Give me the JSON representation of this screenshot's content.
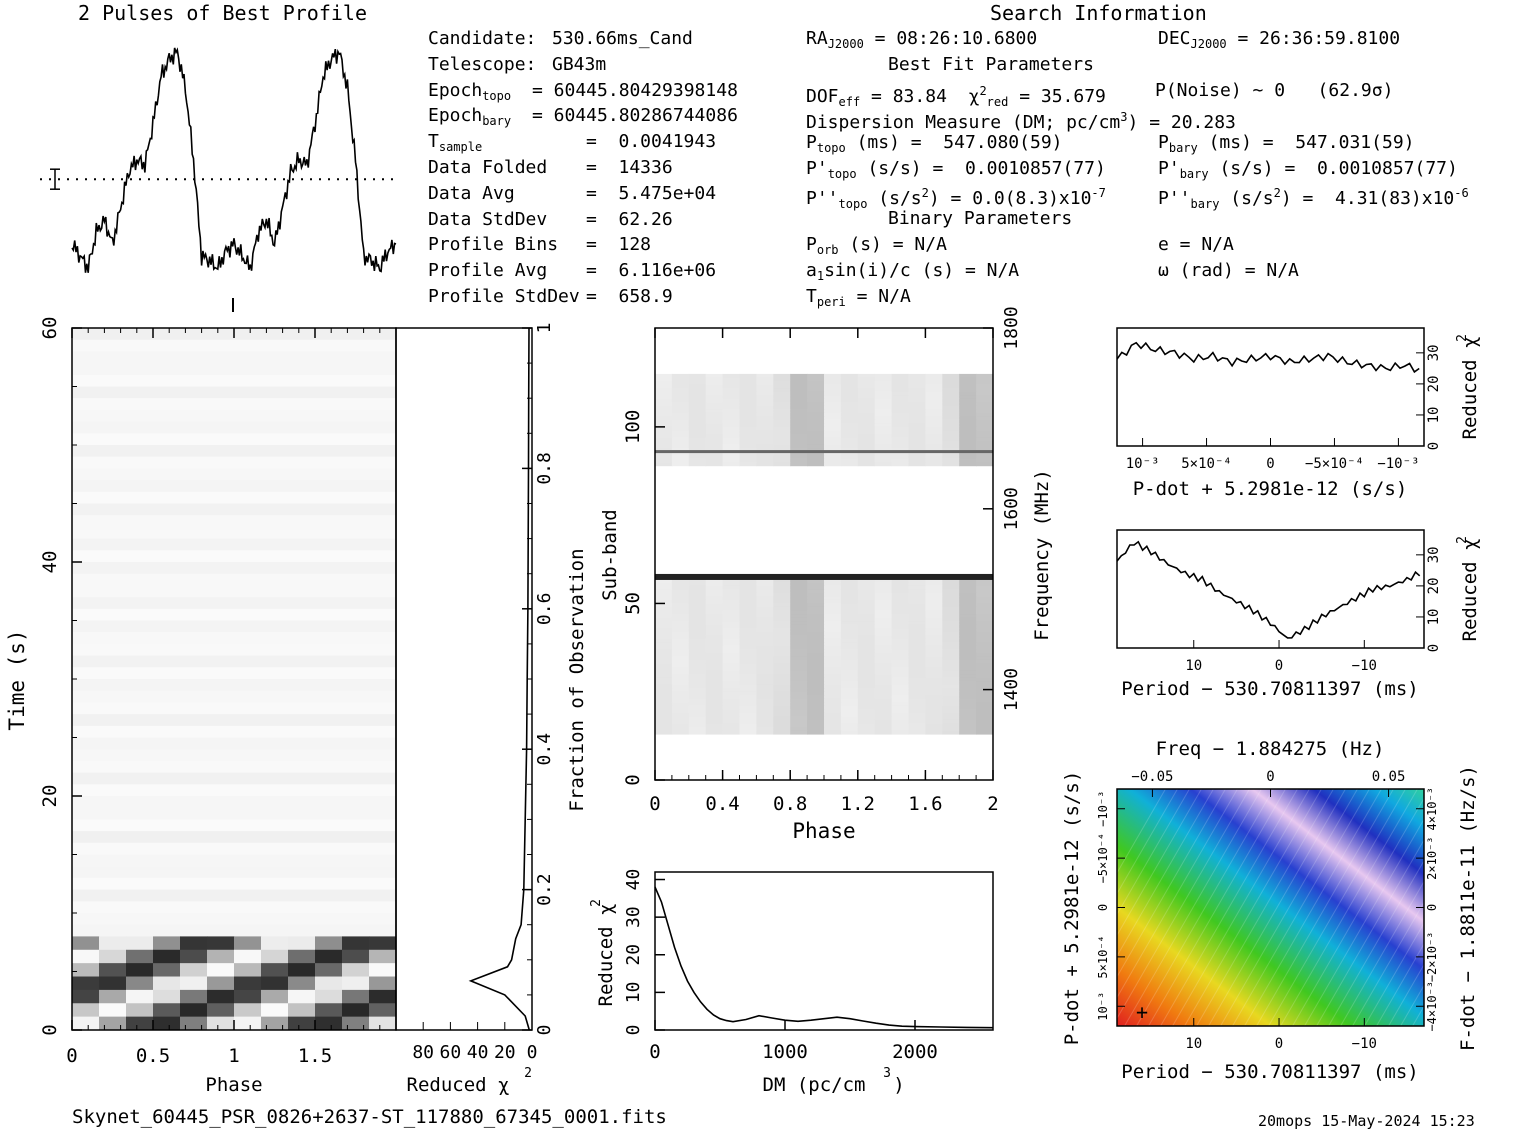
{
  "header": {
    "profile_title": "2 Pulses of Best Profile",
    "search_title": "Search Information",
    "best_fit_title": "Best Fit Parameters",
    "binary_title": "Binary Parameters"
  },
  "info_left": [
    {
      "k": "Candidate:",
      "v": "530.66ms_Cand"
    },
    {
      "k": "Telescope:",
      "v": "GB43m"
    },
    {
      "k": "Epoch",
      "sub": "topo",
      "v": "= 60445.80429398148"
    },
    {
      "k": "Epoch",
      "sub": "bary",
      "v": "= 60445.80286744086"
    },
    {
      "k": "T",
      "sub": "sample",
      "v": "=  0.0041943"
    },
    {
      "k": "Data Folded",
      "v": "=  14336"
    },
    {
      "k": "Data Avg",
      "v": "=  5.475e+04"
    },
    {
      "k": "Data StdDev",
      "v": "=  62.26"
    },
    {
      "k": "Profile Bins",
      "v": "=  128"
    },
    {
      "k": "Profile Avg",
      "v": "=  6.116e+06"
    },
    {
      "k": "Profile StdDev",
      "v": "=  658.9"
    }
  ],
  "info_mid": {
    "ra": "RA",
    "ra_sub": "J2000",
    "ra_val": "= 08:26:10.6800",
    "dof": "DOF",
    "dof_sub": "eff",
    "dof_val": "= 83.84",
    "chi": "χ",
    "chi_sup": "2",
    "chi_sub": "red",
    "chi_val": "= 35.679",
    "dm_line": "Dispersion Measure (DM; pc/cm",
    "dm_sup": "3",
    "dm_val": ") = 20.283",
    "p_topo": "P",
    "p_topo_sub": "topo",
    "p_topo_val": "(ms) =  547.080(59)",
    "pd_topo": "P'",
    "pd_topo_sub": "topo",
    "pd_topo_val": "(s/s) =  0.0010857(77)",
    "pdd_topo": "P''",
    "pdd_topo_sub": "topo",
    "pdd_topo_val": "(s/s",
    "pdd_topo_sup": "2",
    "pdd_topo_val2": ") = 0.0(8.3)x10",
    "pdd_topo_exp": "-7",
    "porb": "P",
    "porb_sub": "orb",
    "porb_val": "(s) = N/A",
    "a1": "a",
    "a1_sub": "1",
    "a1_val": "sin(i)/c (s) = N/A",
    "tperi": "T",
    "tperi_sub": "peri",
    "tperi_val": "= N/A"
  },
  "info_right": {
    "dec": "DEC",
    "dec_sub": "J2000",
    "dec_val": "= 26:36:59.8100",
    "pnoise": "P(Noise) ~ 0   (62.9σ)",
    "p_bary": "P",
    "p_bary_sub": "bary",
    "p_bary_val": "(ms) =  547.031(59)",
    "pd_bary": "P'",
    "pd_bary_sub": "bary",
    "pd_bary_val": "(s/s) =  0.0010857(77)",
    "pdd_bary": "P''",
    "pdd_bary_sub": "bary",
    "pdd_bary_val": "(s/s",
    "pdd_bary_sup": "2",
    "pdd_bary_val2": ") =  4.31(83)x10",
    "pdd_bary_exp": "-6",
    "ecc": "e = N/A",
    "omega": "ω (rad) = N/A"
  },
  "footer": {
    "filename": "Skynet_60445_PSR_0826+2637-ST_117880_67345_0001.fits",
    "stamp": "20mops 15-May-2024 15:23"
  },
  "colors": {
    "ink": "#000000",
    "grid_bg": "#ffffff"
  },
  "chart_data": [
    {
      "id": "profile",
      "type": "line",
      "title": "2 Pulses of Best Profile",
      "x": [
        0,
        0.05,
        0.1,
        0.15,
        0.2,
        0.25,
        0.3,
        0.35,
        0.4,
        0.45,
        0.5,
        0.55,
        0.6,
        0.65,
        0.7,
        0.75,
        0.8,
        0.85,
        0.9,
        0.95,
        1.0,
        1.05,
        1.1,
        1.15,
        1.2,
        1.25,
        1.3,
        1.35,
        1.4,
        1.45,
        1.5,
        1.55,
        1.6,
        1.65,
        1.7,
        1.75,
        1.8,
        1.85,
        1.9,
        1.95,
        2.0
      ],
      "y": [
        0.15,
        0.1,
        0.05,
        0.2,
        0.25,
        0.15,
        0.3,
        0.45,
        0.5,
        0.48,
        0.65,
        0.85,
        0.92,
        0.95,
        0.8,
        0.5,
        0.1,
        0.08,
        0.05,
        0.12,
        0.15,
        0.1,
        0.05,
        0.2,
        0.25,
        0.15,
        0.3,
        0.45,
        0.5,
        0.48,
        0.65,
        0.85,
        0.92,
        0.95,
        0.8,
        0.5,
        0.1,
        0.08,
        0.05,
        0.12,
        0.15
      ],
      "mean_line": 0.42
    },
    {
      "id": "time_phase",
      "type": "heatmap",
      "xlabel": "Phase",
      "ylabel": "Time (s)",
      "right_label": "Fraction of Observation",
      "xticks": [
        "0",
        "0.5",
        "1",
        "1.5"
      ],
      "xtick_vals": [
        0,
        0.5,
        1,
        1.5
      ],
      "xlim": [
        0,
        2
      ],
      "yticks": [
        "0",
        "20",
        "40",
        "60"
      ],
      "ytick_vals": [
        0,
        20,
        40,
        60
      ],
      "ylim": [
        0,
        60
      ],
      "rticks": [
        "0",
        "0.2",
        "0.4",
        "0.6",
        "0.8",
        "1"
      ],
      "rtick_vals": [
        0,
        0.2,
        0.4,
        0.6,
        0.8,
        1
      ]
    },
    {
      "id": "time_chi",
      "type": "line",
      "xlabel": "Reduced χ",
      "xlabel_sup": "2",
      "xticks": [
        "80",
        "60",
        "40",
        "20",
        "0"
      ],
      "xtick_vals": [
        80,
        60,
        40,
        20,
        0
      ],
      "xlim": [
        100,
        0
      ],
      "y": [
        0,
        0.02,
        0.05,
        0.07,
        0.09,
        0.1,
        0.13,
        0.15,
        0.2,
        0.3,
        0.4,
        0.5,
        0.6,
        0.7,
        0.8,
        0.9,
        1.0
      ],
      "x": [
        2,
        5,
        20,
        45,
        18,
        15,
        12,
        8,
        6,
        5,
        4,
        3.5,
        3,
        2.8,
        2.6,
        2.4,
        2.2
      ]
    },
    {
      "id": "subband_phase",
      "type": "heatmap",
      "xlabel": "Phase",
      "ylabel": "Sub-band",
      "right_label": "Frequency (MHz)",
      "xticks": [
        "0",
        "0.4",
        "0.8",
        "1.2",
        "1.6",
        "2"
      ],
      "xtick_vals": [
        0,
        0.4,
        0.8,
        1.2,
        1.6,
        2
      ],
      "xlim": [
        0,
        2
      ],
      "yticks": [
        "0",
        "50",
        "100"
      ],
      "ytick_vals": [
        0,
        50,
        100
      ],
      "ylim": [
        0,
        128
      ],
      "rticks": [
        "1400",
        "1600",
        "1800"
      ],
      "rtick_vals": [
        1400,
        1600,
        1800
      ],
      "rlim": [
        1300,
        1800
      ]
    },
    {
      "id": "dm_chi",
      "type": "line",
      "xlabel": "DM (pc/cm",
      "xlabel_sup": "3",
      "xlabel_end": ")",
      "ylabel": "Reduced χ",
      "ylabel_sup": "2",
      "xticks": [
        "0",
        "1000",
        "2000"
      ],
      "xtick_vals": [
        0,
        1000,
        2000
      ],
      "xlim": [
        0,
        2600
      ],
      "yticks": [
        "0",
        "10",
        "20",
        "30",
        "40"
      ],
      "ytick_vals": [
        0,
        10,
        20,
        30,
        40
      ],
      "ylim": [
        0,
        42
      ],
      "x": [
        0,
        50,
        100,
        150,
        200,
        250,
        300,
        350,
        400,
        450,
        500,
        550,
        600,
        700,
        800,
        900,
        1000,
        1100,
        1200,
        1300,
        1400,
        1500,
        1600,
        1700,
        1800,
        1900,
        2000,
        2200,
        2400,
        2600
      ],
      "y": [
        38,
        34,
        28,
        22,
        17,
        13,
        10,
        7.5,
        5.5,
        4,
        3,
        2.5,
        2.2,
        2.8,
        3.8,
        3.2,
        2.6,
        2.3,
        2.6,
        3,
        3.4,
        3,
        2.4,
        1.8,
        1.3,
        1,
        0.9,
        0.8,
        0.7,
        0.6
      ]
    },
    {
      "id": "pdot_chi",
      "type": "line",
      "xlabel": "P-dot + 5.2981e-12 (s/s)",
      "ylabel": "Reduced χ",
      "ylabel_sup": "2",
      "xticks": [
        "10^-3",
        "5x10^-4",
        "0",
        "-5x10^-4",
        "-10^-3"
      ],
      "xtick_vals": [
        0.001,
        0.0005,
        0,
        -0.0005,
        -0.001
      ],
      "xlim": [
        0.0012,
        -0.0012
      ],
      "yticks": [
        "0",
        "10",
        "20",
        "30"
      ],
      "ytick_vals": [
        0,
        10,
        20,
        30
      ],
      "ylim": [
        0,
        38
      ],
      "x": [
        0.0012,
        0.00105,
        0.0009,
        0.00075,
        0.0006,
        0.00045,
        0.0003,
        0.00015,
        0,
        -0.00015,
        -0.0003,
        -0.00045,
        -0.0006,
        -0.00075,
        -0.0009,
        -0.00105,
        -0.0012
      ],
      "y": [
        28,
        33,
        31,
        30,
        28,
        29,
        27,
        28,
        29,
        27,
        28,
        29,
        27,
        26,
        25,
        26,
        24
      ]
    },
    {
      "id": "period_chi",
      "type": "line",
      "xlabel": "Period − 530.70811397 (ms)",
      "ylabel": "Reduced χ",
      "ylabel_sup": "2",
      "xticks": [
        "10",
        "0",
        "−10"
      ],
      "xtick_vals": [
        10,
        0,
        -10
      ],
      "xlim": [
        19,
        -17
      ],
      "yticks": [
        "0",
        "10",
        "20",
        "30"
      ],
      "ytick_vals": [
        0,
        10,
        20,
        30
      ],
      "ylim": [
        0,
        38
      ],
      "x": [
        19,
        17,
        15,
        13,
        11,
        9,
        7,
        5,
        3,
        1,
        -1,
        -3,
        -5,
        -7,
        -9,
        -11,
        -13,
        -15,
        -17
      ],
      "y": [
        28,
        34,
        31,
        27,
        24,
        22,
        18,
        15,
        12,
        8,
        3,
        6,
        10,
        13,
        16,
        19,
        20,
        22,
        25
      ]
    },
    {
      "id": "p_pdot",
      "type": "heatmap",
      "top_label": "Freq − 1.884275 (Hz)",
      "xlabel": "Period − 530.70811397 (ms)",
      "ylabel": "P-dot + 5.2981e-12 (s/s)",
      "right_label": "F-dot − 1.8811e-11 (Hz/s)",
      "xticks": [
        "10",
        "0",
        "−10"
      ],
      "xtick_vals": [
        10,
        0,
        -10
      ],
      "xlim": [
        19,
        -17
      ],
      "top_ticks": [
        "−0.05",
        "0",
        "0.05"
      ],
      "top_tick_vals": [
        -0.05,
        0,
        0.05
      ],
      "yticks": [
        "10^-3",
        "5x10^-4",
        "0",
        "-5x10^-4",
        "-10^-3"
      ],
      "ytick_vals": [
        0.001,
        0.0005,
        0,
        -0.0005,
        -0.001
      ],
      "ylim": [
        0.0012,
        -0.0012
      ],
      "rticks": [
        "-4x10^-3",
        "-2x10^-3",
        "0",
        "2x10^-3",
        "4x10^-3"
      ],
      "rtick_vals": [
        -0.004,
        -0.002,
        0,
        0.002,
        0.004
      ],
      "rlim": [
        -0.0048,
        0.0048
      ]
    }
  ]
}
